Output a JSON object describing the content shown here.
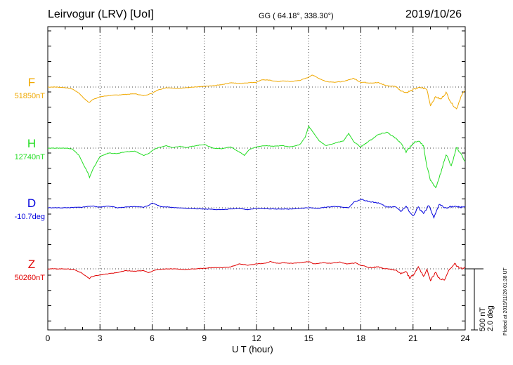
{
  "header": {
    "station": "Leirvogur (LRV)  [UoI]",
    "coords": "GG ( 64.18°, 338.30°)",
    "date": "2019/10/26"
  },
  "footer": {
    "plotted_note": "Plotted at 2019/11/26 01:38 UT",
    "scale_line1": "500 nT",
    "scale_line2": "2.0 deg"
  },
  "chart_data": {
    "type": "line",
    "xlabel": "U T (hour)",
    "xlim": [
      0,
      24
    ],
    "xticks": [
      "0",
      "3",
      "6",
      "9",
      "12",
      "15",
      "18",
      "21",
      "24"
    ],
    "grid": true,
    "series": [
      {
        "name": "F",
        "baseline_label": "51850nT",
        "color": "#f0a800",
        "x": [
          0,
          0.5,
          1.0,
          1.4,
          1.8,
          2.1,
          2.3,
          2.4,
          2.6,
          3.0,
          3.5,
          4.0,
          4.5,
          5.0,
          5.5,
          5.8,
          6.0,
          6.3,
          6.8,
          7.2,
          7.6,
          8.0,
          8.5,
          9.0,
          9.5,
          10.0,
          10.5,
          11.0,
          11.5,
          12.0,
          12.3,
          12.8,
          13.2,
          13.6,
          14.0,
          14.5,
          15.0,
          15.2,
          15.6,
          16.0,
          16.5,
          17.0,
          17.3,
          17.6,
          18.0,
          18.5,
          19.0,
          19.5,
          20.0,
          20.3,
          20.6,
          20.9,
          21.2,
          21.5,
          21.8,
          22.0,
          22.3,
          22.6,
          22.9,
          23.2,
          23.5,
          23.8,
          24.0
        ],
        "y": [
          0,
          0,
          -5,
          -15,
          -50,
          -95,
          -120,
          -125,
          -100,
          -80,
          -70,
          -65,
          -60,
          -55,
          -70,
          -60,
          -50,
          -25,
          -5,
          -10,
          -10,
          -5,
          0,
          5,
          10,
          20,
          35,
          30,
          35,
          40,
          60,
          55,
          45,
          50,
          45,
          55,
          80,
          100,
          70,
          45,
          40,
          45,
          60,
          70,
          40,
          35,
          35,
          10,
          5,
          -30,
          -45,
          -30,
          -10,
          -5,
          -20,
          -150,
          -80,
          -100,
          -45,
          -130,
          -180,
          -60,
          -30
        ]
      },
      {
        "name": "H",
        "baseline_label": "12740nT",
        "color": "#22dd22",
        "x": [
          0,
          0.5,
          1.0,
          1.4,
          1.8,
          2.1,
          2.3,
          2.4,
          2.6,
          3.0,
          3.5,
          4.0,
          4.5,
          5.0,
          5.5,
          5.8,
          6.0,
          6.3,
          6.8,
          7.2,
          7.6,
          8.0,
          8.5,
          9.0,
          9.5,
          10.0,
          10.5,
          11.0,
          11.3,
          11.6,
          12.0,
          12.5,
          13.0,
          13.5,
          14.0,
          14.5,
          14.8,
          15.0,
          15.3,
          15.6,
          16.0,
          16.5,
          17.0,
          17.3,
          17.6,
          18.0,
          18.5,
          19.0,
          19.5,
          20.0,
          20.3,
          20.6,
          21.0,
          21.3,
          21.6,
          21.8,
          22.0,
          22.3,
          22.6,
          22.9,
          23.2,
          23.5,
          24.0
        ],
        "y": [
          0,
          0,
          0,
          -5,
          -60,
          -150,
          -200,
          -240,
          -170,
          -70,
          -40,
          -45,
          -30,
          -25,
          -60,
          -45,
          -20,
          0,
          20,
          5,
          15,
          5,
          20,
          30,
          0,
          -5,
          10,
          -30,
          -60,
          -10,
          10,
          20,
          15,
          20,
          10,
          30,
          90,
          180,
          120,
          60,
          20,
          40,
          60,
          120,
          50,
          10,
          60,
          110,
          130,
          80,
          40,
          -30,
          40,
          60,
          20,
          -150,
          -260,
          -330,
          -200,
          -50,
          -150,
          10,
          -110
        ]
      },
      {
        "name": "D",
        "baseline_label": "-10.7deg",
        "color": "#0000dd",
        "x": [
          0,
          1.0,
          2.0,
          2.5,
          3.0,
          3.5,
          4.0,
          4.5,
          5.0,
          5.5,
          5.8,
          6.0,
          6.5,
          7.0,
          8.0,
          9.0,
          10.0,
          11.0,
          11.5,
          12.0,
          13.0,
          14.0,
          14.5,
          15.0,
          15.5,
          16.0,
          16.5,
          17.0,
          17.3,
          17.6,
          18.0,
          18.5,
          19.0,
          19.5,
          20.0,
          20.3,
          20.6,
          21.0,
          21.3,
          21.6,
          21.9,
          22.2,
          22.5,
          22.8,
          23.2,
          23.6,
          24.0
        ],
        "y": [
          0,
          0,
          5,
          15,
          5,
          15,
          0,
          5,
          10,
          5,
          20,
          40,
          10,
          5,
          -5,
          -10,
          -15,
          -5,
          -15,
          -5,
          -10,
          -10,
          -5,
          0,
          -5,
          5,
          10,
          5,
          0,
          45,
          70,
          50,
          40,
          5,
          10,
          -30,
          10,
          -70,
          5,
          -50,
          20,
          -85,
          30,
          0,
          10,
          5,
          10
        ]
      },
      {
        "name": "Z",
        "baseline_label": "50260nT",
        "color": "#e00000",
        "x": [
          0,
          0.5,
          1.0,
          1.5,
          1.9,
          2.2,
          2.4,
          2.5,
          2.8,
          3.0,
          3.5,
          4.0,
          4.5,
          5.0,
          5.5,
          5.8,
          6.0,
          6.3,
          6.8,
          7.3,
          7.8,
          8.5,
          9.0,
          9.5,
          10.0,
          10.5,
          11.0,
          11.5,
          12.0,
          12.5,
          12.8,
          13.2,
          13.6,
          14.0,
          14.5,
          15.0,
          15.3,
          15.8,
          16.3,
          16.8,
          17.2,
          17.7,
          18.0,
          18.5,
          19.0,
          19.5,
          20.0,
          20.3,
          20.6,
          20.8,
          21.0,
          21.3,
          21.6,
          21.8,
          22.0,
          22.3,
          22.5,
          22.8,
          23.1,
          23.4,
          23.7,
          24.0
        ],
        "y": [
          0,
          0,
          0,
          -5,
          -30,
          -60,
          -80,
          -65,
          -55,
          -50,
          -40,
          -30,
          -15,
          -20,
          -15,
          -30,
          -20,
          -5,
          0,
          0,
          -5,
          0,
          5,
          10,
          10,
          15,
          40,
          30,
          40,
          45,
          60,
          45,
          50,
          45,
          50,
          60,
          40,
          50,
          45,
          55,
          40,
          50,
          30,
          10,
          15,
          0,
          -10,
          -40,
          -20,
          -75,
          -50,
          15,
          -60,
          -10,
          -95,
          -30,
          -75,
          -95,
          0,
          40,
          0,
          10
        ]
      }
    ],
    "scale": {
      "nT": 500,
      "deg": 2.0
    }
  }
}
